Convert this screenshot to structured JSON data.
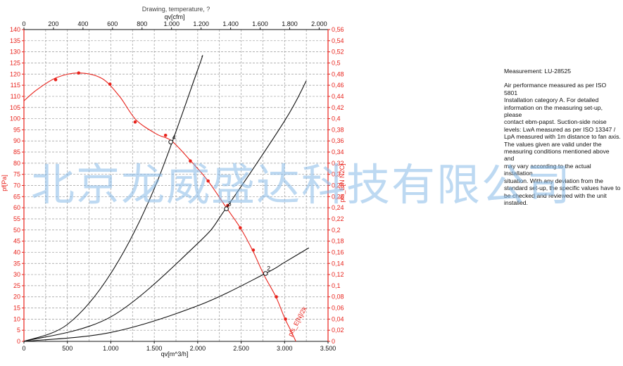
{
  "chart_data": {
    "type": "line",
    "title": "Drawing, temperature, ?",
    "xlabel": "qv[m^3/h]",
    "x2label": "qv[cfm]",
    "ylabel": "pf[Pa]",
    "y2label": "pfs_E[N N2C]",
    "xlim": [
      0,
      3500
    ],
    "x2lim": [
      0,
      2060
    ],
    "ylim": [
      0,
      140
    ],
    "y2lim": [
      0,
      0.56
    ],
    "grid": true,
    "x_ticks": [
      "0",
      "500",
      "1.000",
      "1.500",
      "2.000",
      "2.500",
      "3.000",
      "3.500"
    ],
    "x2_ticks": [
      "0",
      "200",
      "400",
      "600",
      "800",
      "1.000",
      "1.200",
      "1.400",
      "1.600",
      "1.800",
      "2.000"
    ],
    "y_ticks": [
      "0",
      "5",
      "10",
      "15",
      "20",
      "25",
      "30",
      "35",
      "40",
      "45",
      "50",
      "55",
      "60",
      "65",
      "70",
      "75",
      "80",
      "85",
      "90",
      "95",
      "100",
      "105",
      "110",
      "115",
      "120",
      "125",
      "130",
      "135",
      "140"
    ],
    "y2_ticks": [
      "0",
      "0,02",
      "0,04",
      "0,06",
      "0,08",
      "0,1",
      "0,12",
      "0,14",
      "0,16",
      "0,18",
      "0,2",
      "0,22",
      "0,24",
      "0,26",
      "0,28",
      "0,3",
      "0,32",
      "0,34",
      "0,36",
      "0,38",
      "0,4",
      "0,42",
      "0,44",
      "0,46",
      "0,48",
      "0,5",
      "0,52",
      "0,54",
      "0,56"
    ],
    "series": [
      {
        "color": "#e8231c",
        "x": [
          0,
          150,
          380,
          640,
          900,
          1100,
          1290,
          1530,
          1700,
          1920,
          2110,
          2330,
          2490,
          2630,
          2760,
          2900,
          3000,
          3070,
          3130
        ],
        "y": [
          108,
          113,
          118.5,
          120.5,
          118,
          110,
          99.5,
          93,
          90,
          81,
          72.5,
          60,
          51,
          41,
          30,
          20,
          10.5,
          5,
          0
        ]
      },
      {
        "color": "#e8231c",
        "marker": "point",
        "x": [
          365,
          630,
          990,
          1280,
          1630,
          1915,
          2120,
          2345,
          2490,
          2640,
          2905,
          3010
        ],
        "y": [
          117.5,
          120.5,
          115.5,
          98.5,
          92.5,
          81,
          72,
          61,
          51,
          41,
          20,
          10
        ]
      },
      {
        "color": "#111111",
        "x": [
          0,
          500,
          1000,
          1500,
          2000,
          2050
        ],
        "y": [
          0,
          7.6,
          30.5,
          68.5,
          122,
          128
        ]
      },
      {
        "color": "#111111",
        "x": [
          0,
          1000,
          2000,
          2330,
          3000,
          3250
        ],
        "y": [
          0,
          11,
          44,
          60,
          99,
          117
        ]
      },
      {
        "color": "#111111",
        "x": [
          0,
          1000,
          2000,
          2780,
          3000,
          3280
        ],
        "y": [
          0,
          4,
          16,
          30.5,
          35.5,
          42
        ]
      }
    ],
    "points": [
      {
        "label": "4",
        "x": 1690,
        "y": 89.5
      },
      {
        "label": "3",
        "x": 2330,
        "y": 59.5
      },
      {
        "label": "2",
        "x": 2780,
        "y": 30.5
      }
    ],
    "annotation": {
      "text": "pfs_E[N]/2k",
      "x": 3080,
      "y": 2
    }
  },
  "note": {
    "title": "Measurement: LU-28525",
    "lines": [
      "Air performance measured as per ISO 5801",
      "Installation category A. For detailed",
      "information on the measuring set-up, please",
      "contact ebm-papst. Suction-side noise",
      "levels: LwA measured as per ISO 13347 /",
      "LpA measured with 1m distance to fan axis.",
      "The values given are valid under the",
      "measuring conditions mentioned above and",
      "may vary according to the actual installation",
      "situation. With any deviation from the",
      "standard set-up, the specific values have to",
      "be checked and reviewed with the unit",
      "installed."
    ]
  },
  "watermark": "北京龙威盛达科技有限公司",
  "colors": {
    "red": "#e8231c",
    "black": "#111111",
    "grid": "#9a9a9a",
    "watermark": "#87b9e8"
  }
}
